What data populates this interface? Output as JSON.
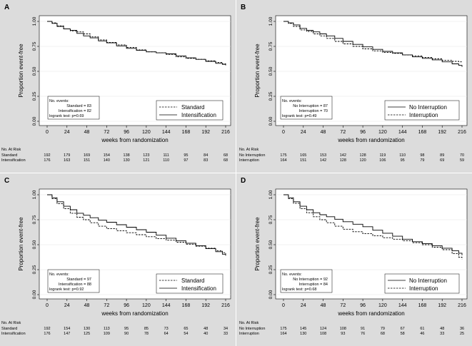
{
  "panels": [
    {
      "id": "A",
      "chart_data": {
        "type": "line",
        "subtype": "kaplan-meier",
        "panel_label": "A",
        "xlabel": "weeks from randomization",
        "ylabel": "Proportion event-free",
        "xlim": [
          0,
          216
        ],
        "ylim": [
          0,
          1
        ],
        "xticks": [
          0,
          24,
          48,
          72,
          96,
          120,
          144,
          168,
          192,
          216
        ],
        "yticks": [
          "0.00",
          "0.25",
          "0.50",
          "0.75",
          "1.00"
        ],
        "grid": "horizontal",
        "legend_position": "bottom-right",
        "series": [
          {
            "name": "Standard",
            "style": "dashed",
            "x": [
              0,
              6,
              12,
              20,
              28,
              36,
              44,
              52,
              62,
              72,
              84,
              96,
              108,
              120,
              132,
              144,
              156,
              168,
              180,
              192,
              204,
              212,
              216
            ],
            "y": [
              1.0,
              0.985,
              0.955,
              0.925,
              0.905,
              0.895,
              0.875,
              0.845,
              0.815,
              0.79,
              0.765,
              0.74,
              0.715,
              0.695,
              0.685,
              0.67,
              0.645,
              0.63,
              0.62,
              0.605,
              0.59,
              0.575,
              0.565
            ]
          },
          {
            "name": "Intensification",
            "style": "solid",
            "x": [
              0,
              6,
              12,
              20,
              28,
              36,
              44,
              52,
              62,
              72,
              84,
              96,
              108,
              120,
              132,
              144,
              156,
              168,
              180,
              192,
              204,
              212,
              216
            ],
            "y": [
              1.0,
              0.98,
              0.95,
              0.925,
              0.91,
              0.88,
              0.855,
              0.835,
              0.805,
              0.785,
              0.755,
              0.73,
              0.71,
              0.695,
              0.685,
              0.675,
              0.655,
              0.635,
              0.62,
              0.6,
              0.58,
              0.57,
              0.56
            ]
          }
        ],
        "events_box": {
          "title": "No. events:",
          "lines": [
            "Standard = 83",
            "Intensification = 82",
            "logrank test: p=0.69"
          ]
        },
        "at_risk": {
          "title": "No. At Risk",
          "rows": [
            {
              "label": "Standard",
              "values": [
                192,
                179,
                169,
                154,
                138,
                123,
                111,
                95,
                84,
                68
              ]
            },
            {
              "label": "Intensification",
              "values": [
                176,
                163,
                151,
                140,
                130,
                121,
                110,
                97,
                83,
                68
              ]
            }
          ]
        }
      }
    },
    {
      "id": "B",
      "chart_data": {
        "type": "line",
        "subtype": "kaplan-meier",
        "panel_label": "B",
        "xlabel": "weeks from randomization",
        "ylabel": "Proportion event-free",
        "xlim": [
          0,
          216
        ],
        "ylim": [
          0,
          1
        ],
        "xticks": [
          0,
          24,
          48,
          72,
          96,
          120,
          144,
          168,
          192,
          216
        ],
        "yticks": [
          "0.00",
          "0.25",
          "0.50",
          "0.75",
          "1.00"
        ],
        "grid": "horizontal",
        "legend_position": "bottom-right",
        "series": [
          {
            "name": "No Interruption",
            "style": "solid",
            "x": [
              0,
              6,
              12,
              20,
              28,
              36,
              44,
              52,
              62,
              72,
              84,
              96,
              108,
              120,
              132,
              144,
              156,
              168,
              180,
              192,
              204,
              212,
              216
            ],
            "y": [
              1.0,
              0.985,
              0.965,
              0.93,
              0.91,
              0.895,
              0.875,
              0.855,
              0.83,
              0.8,
              0.77,
              0.745,
              0.72,
              0.7,
              0.685,
              0.665,
              0.645,
              0.63,
              0.615,
              0.595,
              0.575,
              0.56,
              0.545
            ]
          },
          {
            "name": "Interruption",
            "style": "dashed",
            "x": [
              0,
              6,
              12,
              20,
              28,
              36,
              44,
              52,
              62,
              72,
              84,
              96,
              108,
              120,
              132,
              144,
              156,
              168,
              180,
              192,
              204,
              212,
              216
            ],
            "y": [
              1.0,
              0.98,
              0.95,
              0.915,
              0.9,
              0.875,
              0.855,
              0.83,
              0.8,
              0.775,
              0.75,
              0.725,
              0.705,
              0.69,
              0.68,
              0.665,
              0.655,
              0.64,
              0.625,
              0.61,
              0.6,
              0.595,
              0.59
            ]
          }
        ],
        "events_box": {
          "title": "No. events:",
          "lines": [
            "No Interruption = 87",
            "Interruption = 70",
            "logrank test: p=0.49"
          ]
        },
        "at_risk": {
          "title": "No. At Risk",
          "rows": [
            {
              "label": "No Interruption",
              "values": [
                175,
                165,
                153,
                142,
                128,
                119,
                110,
                98,
                89,
                70
              ]
            },
            {
              "label": "Interruption",
              "values": [
                164,
                151,
                142,
                128,
                120,
                106,
                95,
                79,
                69,
                59
              ]
            }
          ]
        }
      }
    },
    {
      "id": "C",
      "chart_data": {
        "type": "line",
        "subtype": "kaplan-meier",
        "panel_label": "C",
        "xlabel": "weeks from randomization",
        "ylabel": "Proportion event-free",
        "xlim": [
          0,
          216
        ],
        "ylim": [
          0,
          1
        ],
        "xticks": [
          0,
          24,
          48,
          72,
          96,
          120,
          144,
          168,
          192,
          216
        ],
        "yticks": [
          "0.00",
          "0.25",
          "0.50",
          "0.75",
          "1.00"
        ],
        "grid": "horizontal",
        "legend_position": "bottom-right",
        "series": [
          {
            "name": "Standard",
            "style": "dashed",
            "x": [
              0,
              6,
              12,
              20,
              28,
              36,
              44,
              52,
              62,
              72,
              84,
              96,
              108,
              120,
              132,
              144,
              156,
              168,
              180,
              192,
              204,
              212,
              216
            ],
            "y": [
              1.0,
              0.96,
              0.91,
              0.86,
              0.815,
              0.775,
              0.75,
              0.72,
              0.685,
              0.66,
              0.64,
              0.62,
              0.6,
              0.58,
              0.56,
              0.545,
              0.525,
              0.505,
              0.485,
              0.465,
              0.44,
              0.42,
              0.405
            ]
          },
          {
            "name": "Intensification",
            "style": "solid",
            "x": [
              0,
              6,
              12,
              20,
              28,
              36,
              44,
              52,
              62,
              72,
              84,
              96,
              108,
              120,
              132,
              144,
              156,
              168,
              180,
              192,
              204,
              212,
              216
            ],
            "y": [
              1.0,
              0.97,
              0.93,
              0.885,
              0.85,
              0.815,
              0.795,
              0.77,
              0.745,
              0.725,
              0.7,
              0.675,
              0.65,
              0.625,
              0.595,
              0.565,
              0.54,
              0.515,
              0.49,
              0.46,
              0.43,
              0.405,
              0.39
            ]
          }
        ],
        "events_box": {
          "title": "No. events:",
          "lines": [
            "Standard = 97",
            "Intensification = 88",
            "logrank test: p=0.92"
          ]
        },
        "at_risk": {
          "title": "No. At Risk",
          "rows": [
            {
              "label": "Standard",
              "values": [
                192,
                154,
                130,
                113,
                95,
                85,
                73,
                65,
                48,
                34
              ]
            },
            {
              "label": "Intensification",
              "values": [
                176,
                147,
                125,
                109,
                90,
                78,
                64,
                54,
                40,
                33
              ]
            }
          ]
        }
      }
    },
    {
      "id": "D",
      "chart_data": {
        "type": "line",
        "subtype": "kaplan-meier",
        "panel_label": "D",
        "xlabel": "weeks from randomization",
        "ylabel": "Proportion event-free",
        "xlim": [
          0,
          216
        ],
        "ylim": [
          0,
          1
        ],
        "xticks": [
          0,
          24,
          48,
          72,
          96,
          120,
          144,
          168,
          192,
          216
        ],
        "yticks": [
          "0.00",
          "0.25",
          "0.50",
          "0.75",
          "1.00"
        ],
        "grid": "horizontal",
        "legend_position": "bottom-right",
        "series": [
          {
            "name": "No Interruption",
            "style": "solid",
            "x": [
              0,
              6,
              12,
              20,
              28,
              36,
              44,
              52,
              62,
              72,
              84,
              96,
              108,
              120,
              132,
              144,
              156,
              168,
              180,
              192,
              204,
              212,
              216
            ],
            "y": [
              1.0,
              0.97,
              0.93,
              0.885,
              0.85,
              0.82,
              0.8,
              0.78,
              0.755,
              0.73,
              0.705,
              0.68,
              0.645,
              0.615,
              0.585,
              0.555,
              0.53,
              0.51,
              0.49,
              0.465,
              0.44,
              0.415,
              0.395
            ]
          },
          {
            "name": "Interruption",
            "style": "dashed",
            "x": [
              0,
              6,
              12,
              20,
              28,
              36,
              44,
              52,
              62,
              72,
              84,
              96,
              108,
              120,
              132,
              144,
              156,
              168,
              180,
              192,
              204,
              212,
              216
            ],
            "y": [
              1.0,
              0.96,
              0.915,
              0.86,
              0.82,
              0.78,
              0.75,
              0.72,
              0.685,
              0.655,
              0.63,
              0.61,
              0.59,
              0.57,
              0.555,
              0.54,
              0.52,
              0.5,
              0.475,
              0.45,
              0.41,
              0.375,
              0.355
            ]
          }
        ],
        "events_box": {
          "title": "No. events:",
          "lines": [
            "No Interruption = 92",
            "Interruption = 84",
            "logrank test: p=0.68"
          ]
        },
        "at_risk": {
          "title": "No. At Risk",
          "rows": [
            {
              "label": "No Interruption",
              "values": [
                175,
                145,
                124,
                108,
                91,
                79,
                67,
                61,
                48,
                36
              ]
            },
            {
              "label": "Interruption",
              "values": [
                164,
                130,
                108,
                93,
                76,
                68,
                58,
                46,
                33,
                25
              ]
            }
          ]
        }
      }
    }
  ],
  "colors": {
    "panel_background": "#dcdcdc",
    "plot_background": "#ffffff",
    "line": "#000000",
    "grid": "#e6e6e6",
    "text": "#000000"
  }
}
